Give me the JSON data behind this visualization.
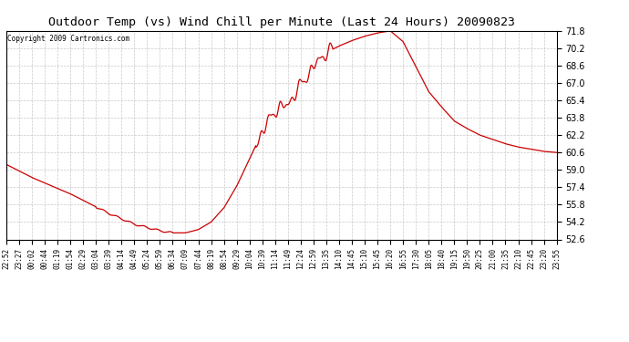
{
  "title": "Outdoor Temp (vs) Wind Chill per Minute (Last 24 Hours) 20090823",
  "copyright": "Copyright 2009 Cartronics.com",
  "line_color": "#cc0000",
  "background_color": "#ffffff",
  "grid_color": "#bbbbbb",
  "y_min": 52.6,
  "y_max": 71.8,
  "y_step": 1.6,
  "x_labels": [
    "22:52",
    "23:27",
    "00:02",
    "00:44",
    "01:19",
    "01:54",
    "02:29",
    "03:04",
    "03:39",
    "04:14",
    "04:49",
    "05:24",
    "05:59",
    "06:34",
    "07:09",
    "07:44",
    "08:19",
    "08:54",
    "09:29",
    "10:04",
    "10:39",
    "11:14",
    "11:49",
    "12:24",
    "12:59",
    "13:35",
    "14:10",
    "14:45",
    "15:10",
    "15:45",
    "16:20",
    "16:55",
    "17:30",
    "18:05",
    "18:40",
    "19:15",
    "19:50",
    "20:25",
    "21:00",
    "21:35",
    "22:10",
    "22:45",
    "23:20",
    "23:55"
  ],
  "figsize": [
    6.9,
    3.75
  ],
  "dpi": 100
}
